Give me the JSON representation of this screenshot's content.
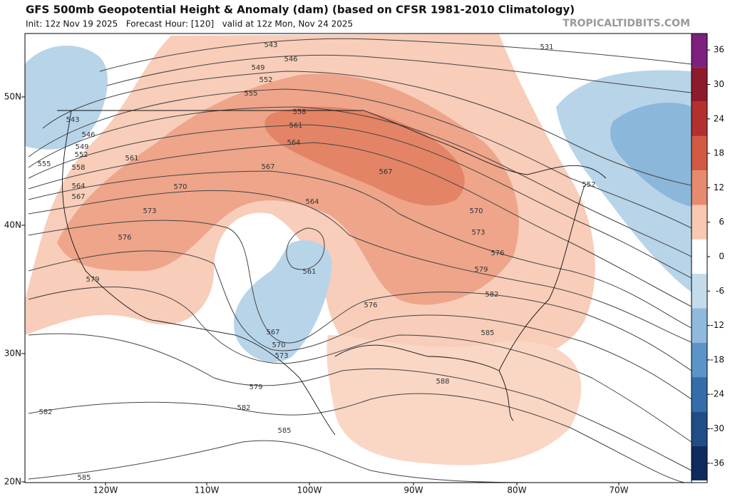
{
  "header": {
    "title": "GFS 500mb Geopotential Height & Anomaly (dam) (based on CFSR 1981-2010 Climatology)",
    "subtitle": "Init: 12z Nov 19 2025   Forecast Hour: [120]   valid at 12z Mon, Nov 24 2025",
    "source": "TROPICALTIDBITS.COM"
  },
  "map": {
    "lat_labels": [
      "50N",
      "40N",
      "30N",
      "20N"
    ],
    "lon_labels": [
      "120W",
      "110W",
      "100W",
      "90W",
      "80W",
      "70W"
    ],
    "contour_labels": [
      "543",
      "546",
      "549",
      "552",
      "555",
      "558",
      "561",
      "564",
      "567",
      "567",
      "531",
      "543",
      "546",
      "549",
      "552",
      "555",
      "558",
      "561",
      "564",
      "567",
      "570",
      "573",
      "576",
      "579",
      "564",
      "561",
      "567",
      "570",
      "573",
      "576",
      "552",
      "570",
      "573",
      "576",
      "579",
      "582",
      "585",
      "588",
      "579",
      "582",
      "585",
      "582",
      "585"
    ]
  },
  "colorbar": {
    "ticks": [
      36,
      30,
      24,
      18,
      12,
      6,
      0,
      -6,
      -12,
      -18,
      -24,
      -30,
      -36
    ],
    "colors": [
      "#7d1f7c",
      "#8e1b2c",
      "#b3302f",
      "#d25a43",
      "#e68b6e",
      "#f7c8b2",
      "#ffffff",
      "#c4dbec",
      "#8fbadb",
      "#5b94c6",
      "#356dab",
      "#1f4d86",
      "#0f2a5c"
    ]
  }
}
